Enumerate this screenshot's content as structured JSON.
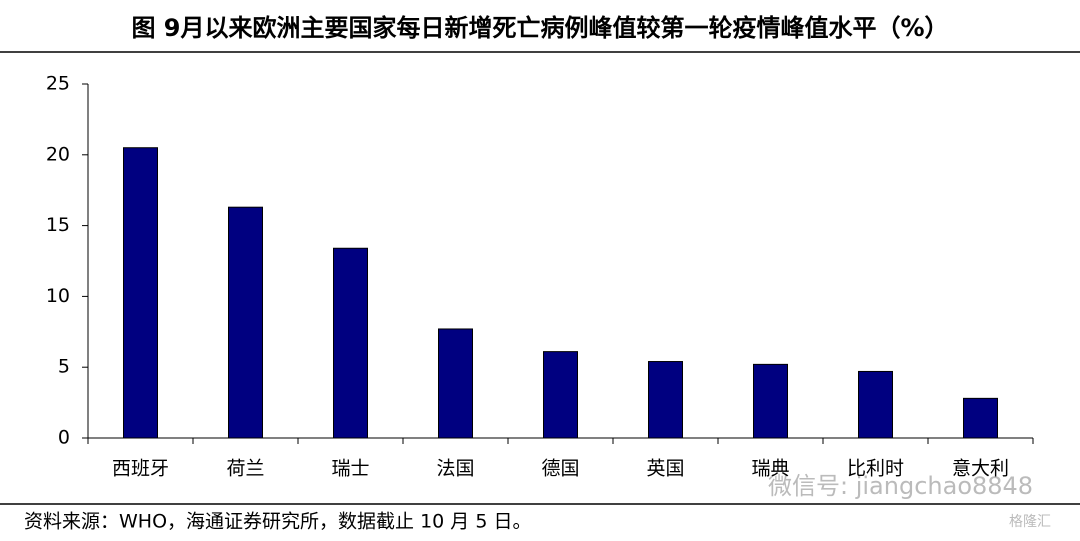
{
  "chart_data": {
    "type": "bar",
    "title": "图 9月以来欧洲主要国家每日新增死亡病例峰值较第一轮疫情峰值水平（%）",
    "categories": [
      "西班牙",
      "荷兰",
      "瑞士",
      "法国",
      "德国",
      "英国",
      "瑞典",
      "比利时",
      "意大利"
    ],
    "values": [
      20.5,
      16.3,
      13.4,
      7.7,
      6.1,
      5.4,
      5.2,
      4.7,
      2.8
    ],
    "color": "#000080",
    "ylim": [
      0,
      25
    ],
    "yticks": [
      0,
      5,
      10,
      15,
      20,
      25
    ],
    "grid": false,
    "source": "资料来源：WHO，海通证券研究所，数据截止 10 月 5 日。",
    "watermark": "微信号: jiangchao8848",
    "logo": "格隆汇"
  }
}
